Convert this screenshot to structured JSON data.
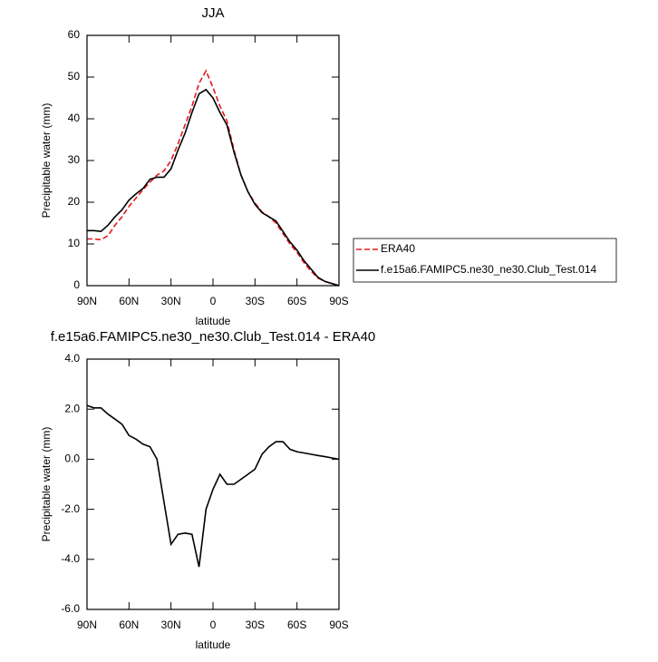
{
  "chart_data": [
    {
      "type": "line",
      "title": "JJA",
      "xlabel": "latitude",
      "ylabel": "Precipitable water (mm)",
      "x": [
        90,
        85,
        80,
        75,
        70,
        65,
        60,
        55,
        50,
        45,
        40,
        35,
        30,
        25,
        20,
        15,
        10,
        5,
        0,
        -5,
        -10,
        -15,
        -20,
        -25,
        -30,
        -35,
        -40,
        -45,
        -50,
        -55,
        -60,
        -65,
        -70,
        -75,
        -80,
        -85,
        -90
      ],
      "xlim": [
        90,
        -90
      ],
      "xticks": [
        {
          "value": 90,
          "label": "90N"
        },
        {
          "value": 60,
          "label": "60N"
        },
        {
          "value": 30,
          "label": "30N"
        },
        {
          "value": 0,
          "label": "0"
        },
        {
          "value": -30,
          "label": "30S"
        },
        {
          "value": -60,
          "label": "60S"
        },
        {
          "value": -90,
          "label": "90S"
        }
      ],
      "ylim": [
        0,
        60
      ],
      "yticks": [
        0,
        10,
        20,
        30,
        40,
        50,
        60
      ],
      "legend_position": "outside-right",
      "series": [
        {
          "name": "ERA40",
          "color": "#e41a1c",
          "line_style": "dashed",
          "values": [
            11.2,
            11.2,
            11,
            12,
            14.5,
            16.5,
            19,
            21,
            23,
            24.8,
            26.5,
            27.5,
            30,
            34,
            38.5,
            43,
            48.5,
            51.5,
            47.5,
            43,
            39.5,
            32.5,
            26.5,
            22.5,
            19.8,
            17.7,
            16.5,
            15,
            12.5,
            10,
            8,
            5.5,
            3.5,
            1.8,
            1,
            0.5,
            0
          ]
        },
        {
          "name": "f.e15a6.FAMIPC5.ne30_ne30.Club_Test.014",
          "color": "#000000",
          "line_style": "solid",
          "values": [
            13.2,
            13.2,
            13,
            14.5,
            16.5,
            18.2,
            20.5,
            22,
            23.3,
            25.5,
            26,
            26,
            28,
            32.5,
            36.5,
            41.5,
            46,
            47,
            45,
            41.5,
            38.5,
            32,
            26.5,
            22.5,
            19.5,
            17.5,
            16.5,
            15.5,
            13,
            10.5,
            8.5,
            6,
            4,
            2,
            1,
            0.5,
            0
          ]
        }
      ]
    },
    {
      "type": "line",
      "title": "f.e15a6.FAMIPC5.ne30_ne30.Club_Test.014 - ERA40",
      "xlabel": "latitude",
      "ylabel": "Precipitable water (mm)",
      "x": [
        90,
        85,
        80,
        75,
        70,
        65,
        60,
        55,
        50,
        45,
        40,
        35,
        30,
        25,
        20,
        15,
        10,
        5,
        0,
        -5,
        -10,
        -15,
        -20,
        -25,
        -30,
        -35,
        -40,
        -45,
        -50,
        -55,
        -60,
        -65,
        -70,
        -75,
        -80,
        -85,
        -90
      ],
      "xlim": [
        90,
        -90
      ],
      "xticks": [
        {
          "value": 90,
          "label": "90N"
        },
        {
          "value": 60,
          "label": "60N"
        },
        {
          "value": 30,
          "label": "30N"
        },
        {
          "value": 0,
          "label": "0"
        },
        {
          "value": -30,
          "label": "30S"
        },
        {
          "value": -60,
          "label": "60S"
        },
        {
          "value": -90,
          "label": "90S"
        }
      ],
      "ylim": [
        -6,
        4
      ],
      "yticks": [
        {
          "value": -6,
          "label": "-6.0"
        },
        {
          "value": -4,
          "label": "-4.0"
        },
        {
          "value": -2,
          "label": "-2.0"
        },
        {
          "value": 0,
          "label": "0.0"
        },
        {
          "value": 2,
          "label": "2.0"
        },
        {
          "value": 4,
          "label": "4.0"
        }
      ],
      "color": "#000000",
      "values": [
        2.15,
        2.05,
        2.05,
        1.8,
        1.6,
        1.4,
        0.95,
        0.8,
        0.6,
        0.5,
        0,
        -1.7,
        -3.4,
        -3.0,
        -2.95,
        -3.0,
        -4.3,
        -2.0,
        -1.2,
        -0.6,
        -1.0,
        -1.0,
        -0.8,
        -0.6,
        -0.4,
        0.2,
        0.5,
        0.7,
        0.7,
        0.4,
        0.3,
        0.25,
        0.2,
        0.15,
        0.1,
        0.05,
        0
      ]
    }
  ]
}
